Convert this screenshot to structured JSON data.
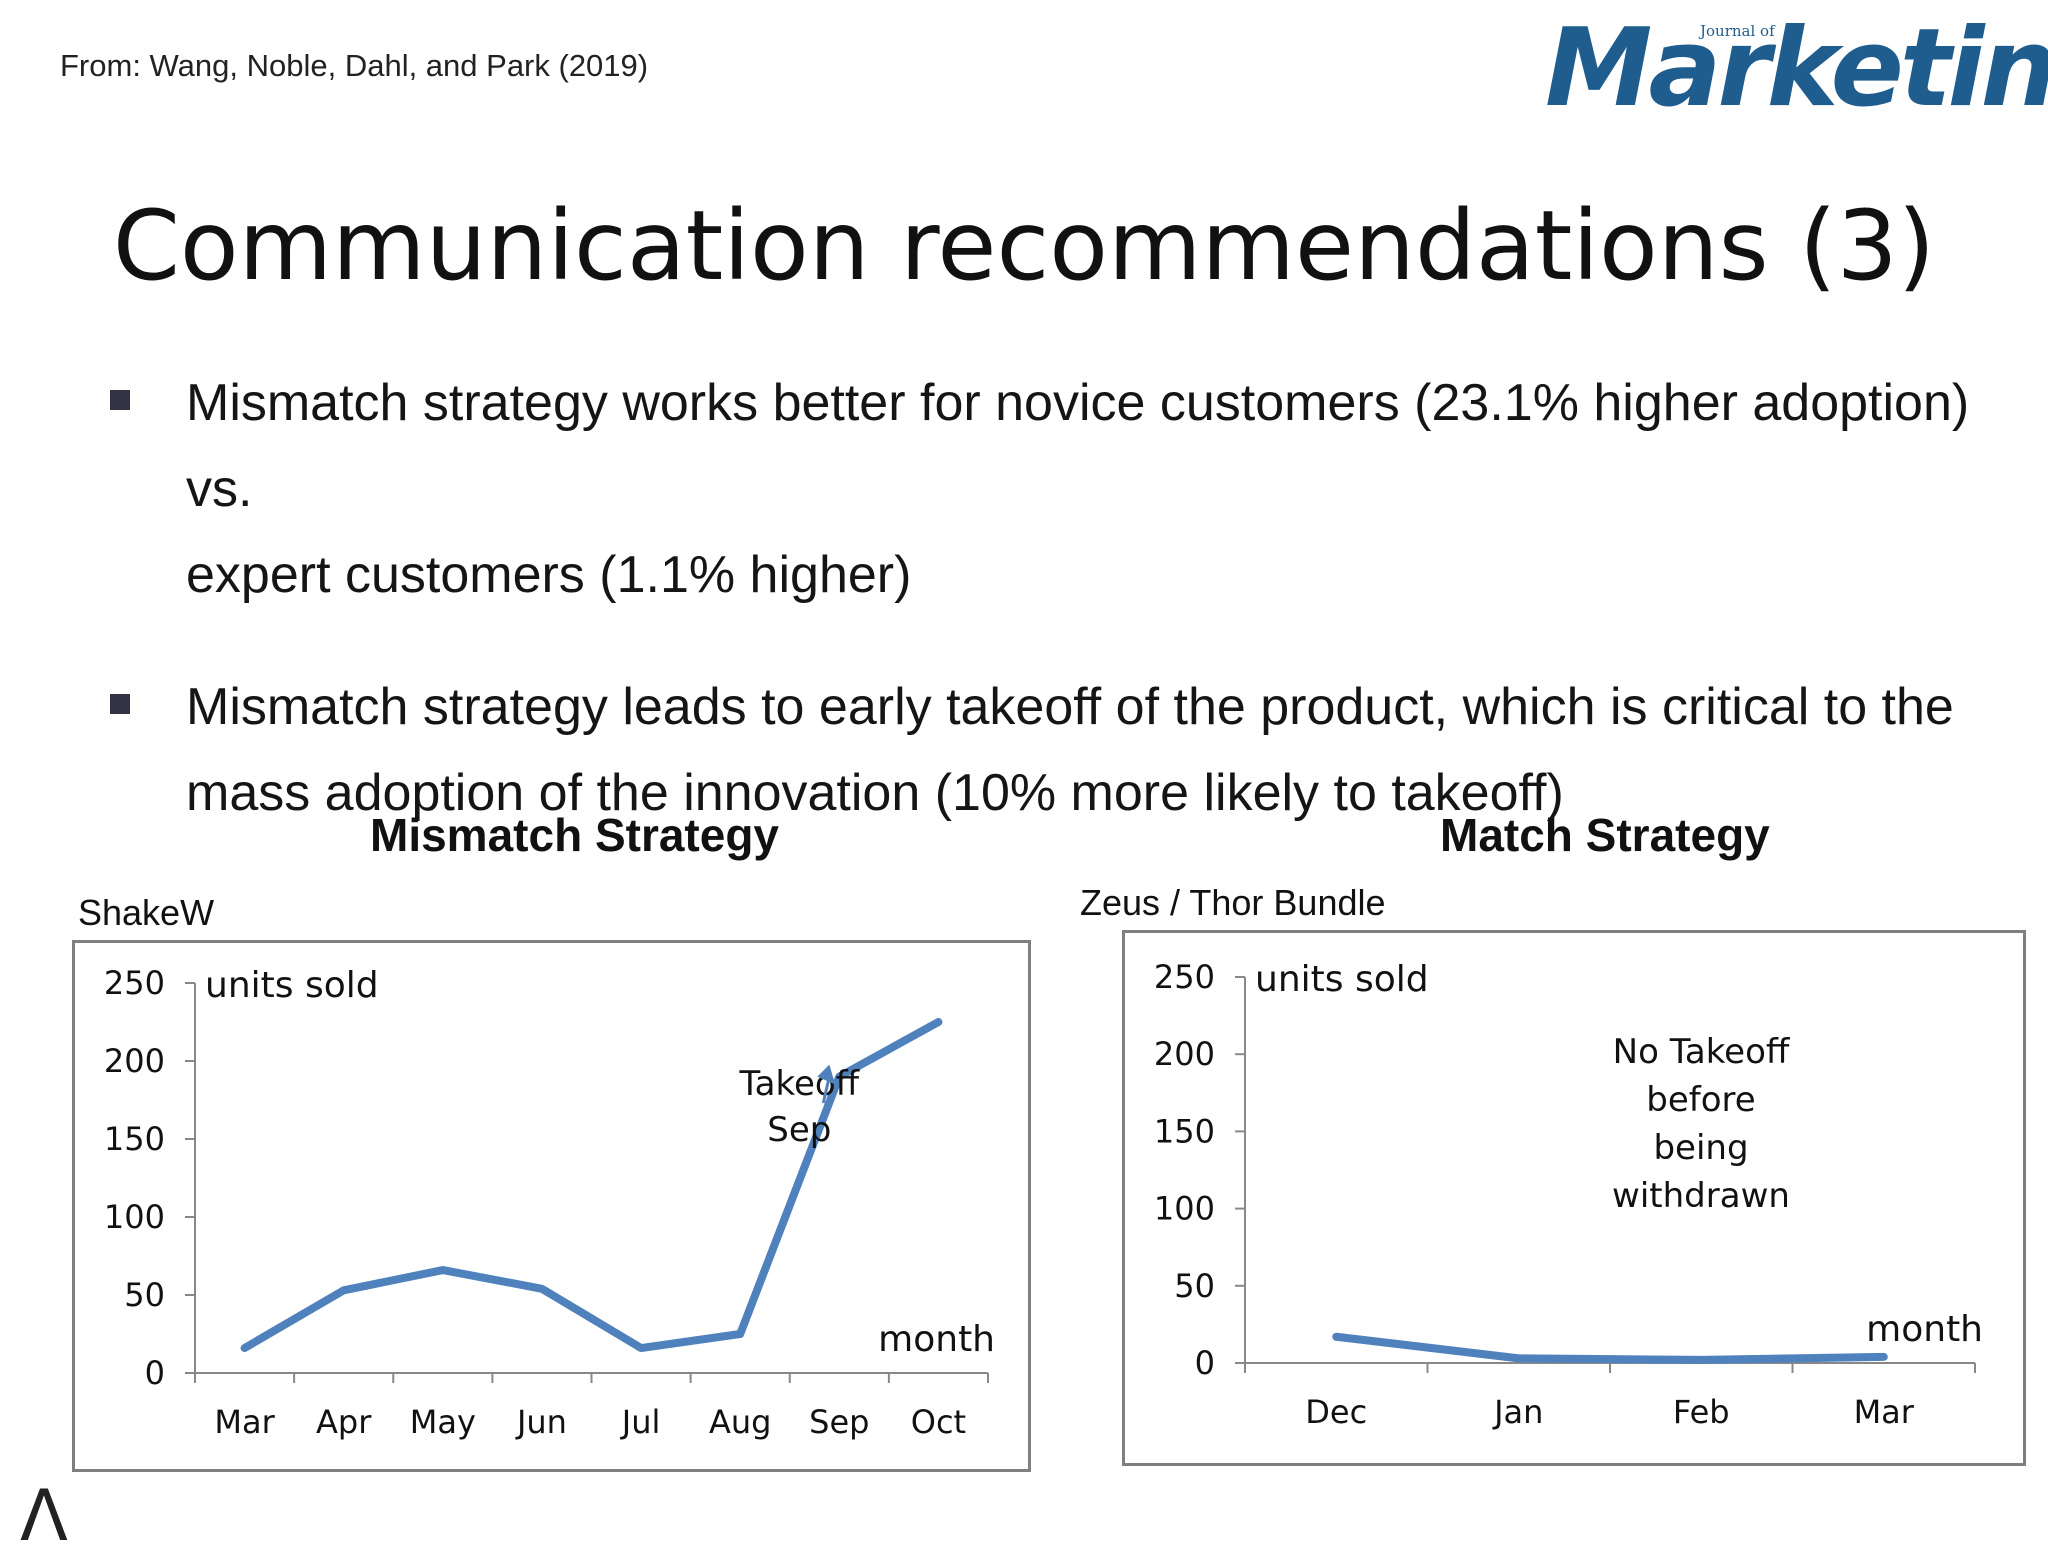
{
  "source": "From: Wang, Noble, Dahl, and Park (2019)",
  "logo": {
    "small": "Journal of",
    "main": "Marketing",
    "color": "#1f5d8f"
  },
  "title": "Communication recommendations (3)",
  "bullets": [
    {
      "line1": "Mismatch strategy works better for novice customers (23.1% higher adoption) vs.",
      "line2": "expert customers (1.1% higher)"
    },
    {
      "line1": "Mismatch strategy leads to early takeoff of the product, which is critical to the",
      "line2": "mass adoption of the innovation (10% more likely to takeoff)"
    }
  ],
  "footer_mark": "Λ",
  "chart_data": [
    {
      "type": "line",
      "title": "Mismatch Strategy",
      "product": "ShakeW",
      "ylabel": "units sold",
      "xlabel": "month",
      "categories": [
        "Mar",
        "Apr",
        "May",
        "Jun",
        "Jul",
        "Aug",
        "Sep",
        "Oct"
      ],
      "values": [
        16,
        53,
        66,
        54,
        16,
        25,
        190,
        225
      ],
      "ylim": [
        0,
        250
      ],
      "yticks": [
        0,
        50,
        100,
        150,
        200,
        250
      ],
      "annotation": {
        "line1": "Takeoff",
        "line2": "Sep"
      },
      "color": "#4f81bd"
    },
    {
      "type": "line",
      "title": "Match Strategy",
      "product": "Zeus / Thor Bundle",
      "ylabel": "units sold",
      "xlabel": "month",
      "categories": [
        "Dec",
        "Jan",
        "Feb",
        "Mar"
      ],
      "values": [
        17,
        3,
        2,
        4
      ],
      "ylim": [
        0,
        250
      ],
      "yticks": [
        0,
        50,
        100,
        150,
        200,
        250
      ],
      "annotation": {
        "line1": "No Takeoff",
        "line2": "before",
        "line3": "being",
        "line4": "withdrawn"
      },
      "color": "#4f81bd"
    }
  ]
}
